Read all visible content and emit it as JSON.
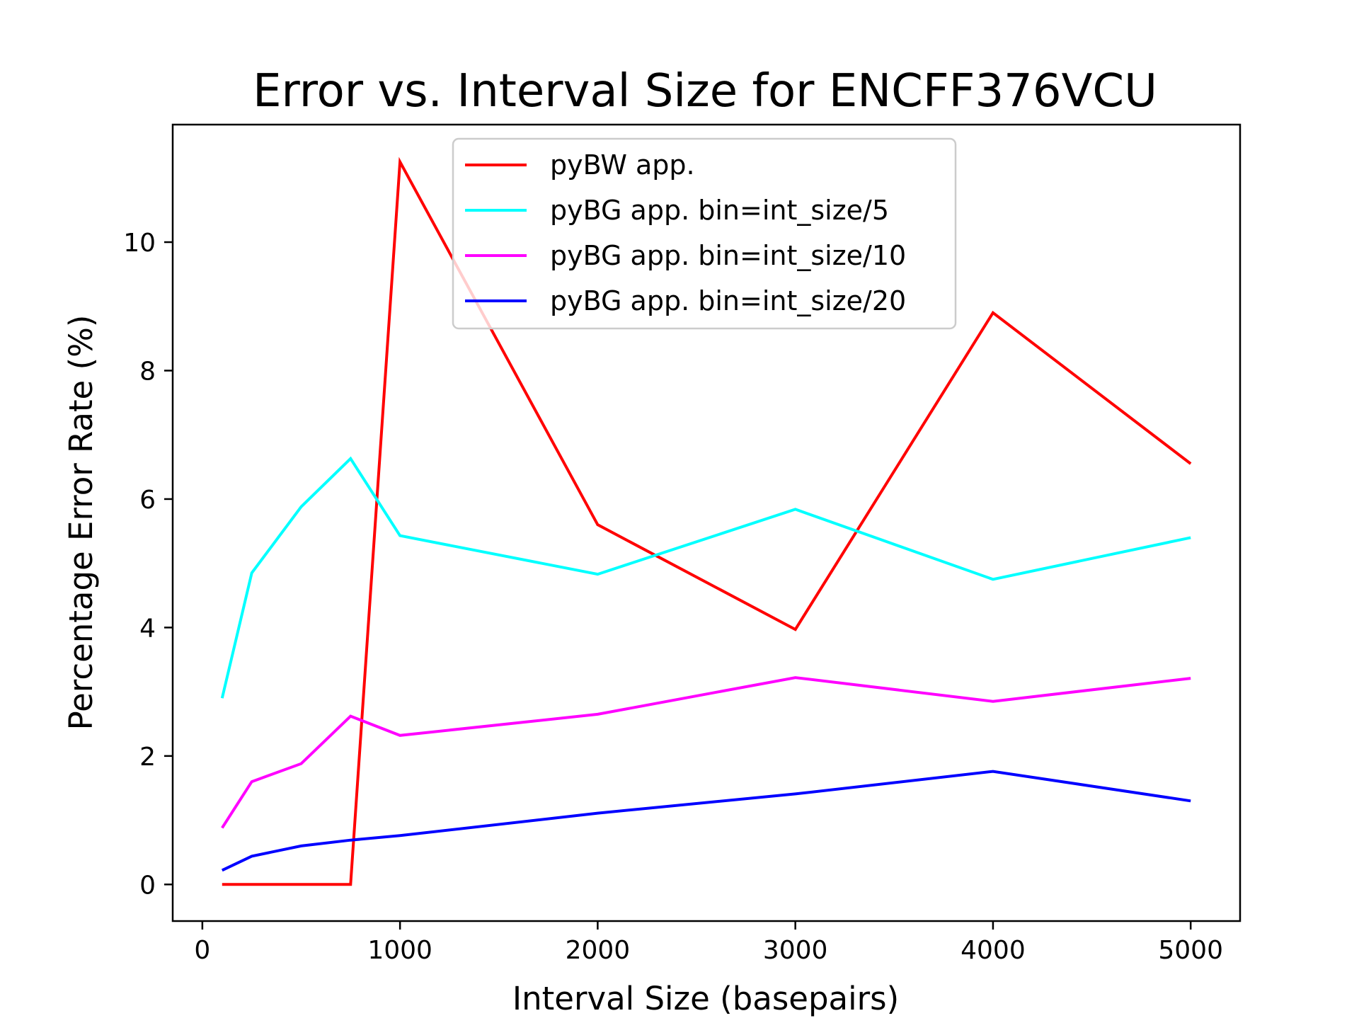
{
  "chart_data": {
    "type": "line",
    "title": "Error vs. Interval Size for ENCFF376VCU",
    "xlabel": "Interval Size (basepairs)",
    "ylabel": "Percentage Error Rate (%)",
    "xlim": [
      -150,
      5250
    ],
    "ylim": [
      -0.57,
      11.83
    ],
    "xticks": [
      0,
      1000,
      2000,
      3000,
      4000,
      5000
    ],
    "yticks": [
      0,
      2,
      4,
      6,
      8,
      10
    ],
    "grid": false,
    "legend_position": "upper-center",
    "x": [
      100,
      250,
      500,
      750,
      1000,
      2000,
      3000,
      4000,
      5000
    ],
    "series": [
      {
        "name": "pyBW app.",
        "color": "#ff0000",
        "values": [
          0,
          0,
          0,
          0,
          11.25,
          5.6,
          3.97,
          8.9,
          6.55
        ]
      },
      {
        "name": "pyBG app. bin=int_size/5",
        "color": "#00ffff",
        "values": [
          2.9,
          4.85,
          5.88,
          6.63,
          5.43,
          4.83,
          5.84,
          4.75,
          5.4
        ]
      },
      {
        "name": "pyBG app. bin=int_size/10",
        "color": "#ff00ff",
        "values": [
          0.88,
          1.6,
          1.88,
          2.62,
          2.32,
          2.65,
          3.22,
          2.85,
          3.21
        ]
      },
      {
        "name": "pyBG app. bin=int_size/20",
        "color": "#0000ff",
        "values": [
          0.22,
          0.44,
          0.6,
          0.69,
          0.76,
          1.11,
          1.41,
          1.76,
          1.3
        ]
      }
    ]
  }
}
